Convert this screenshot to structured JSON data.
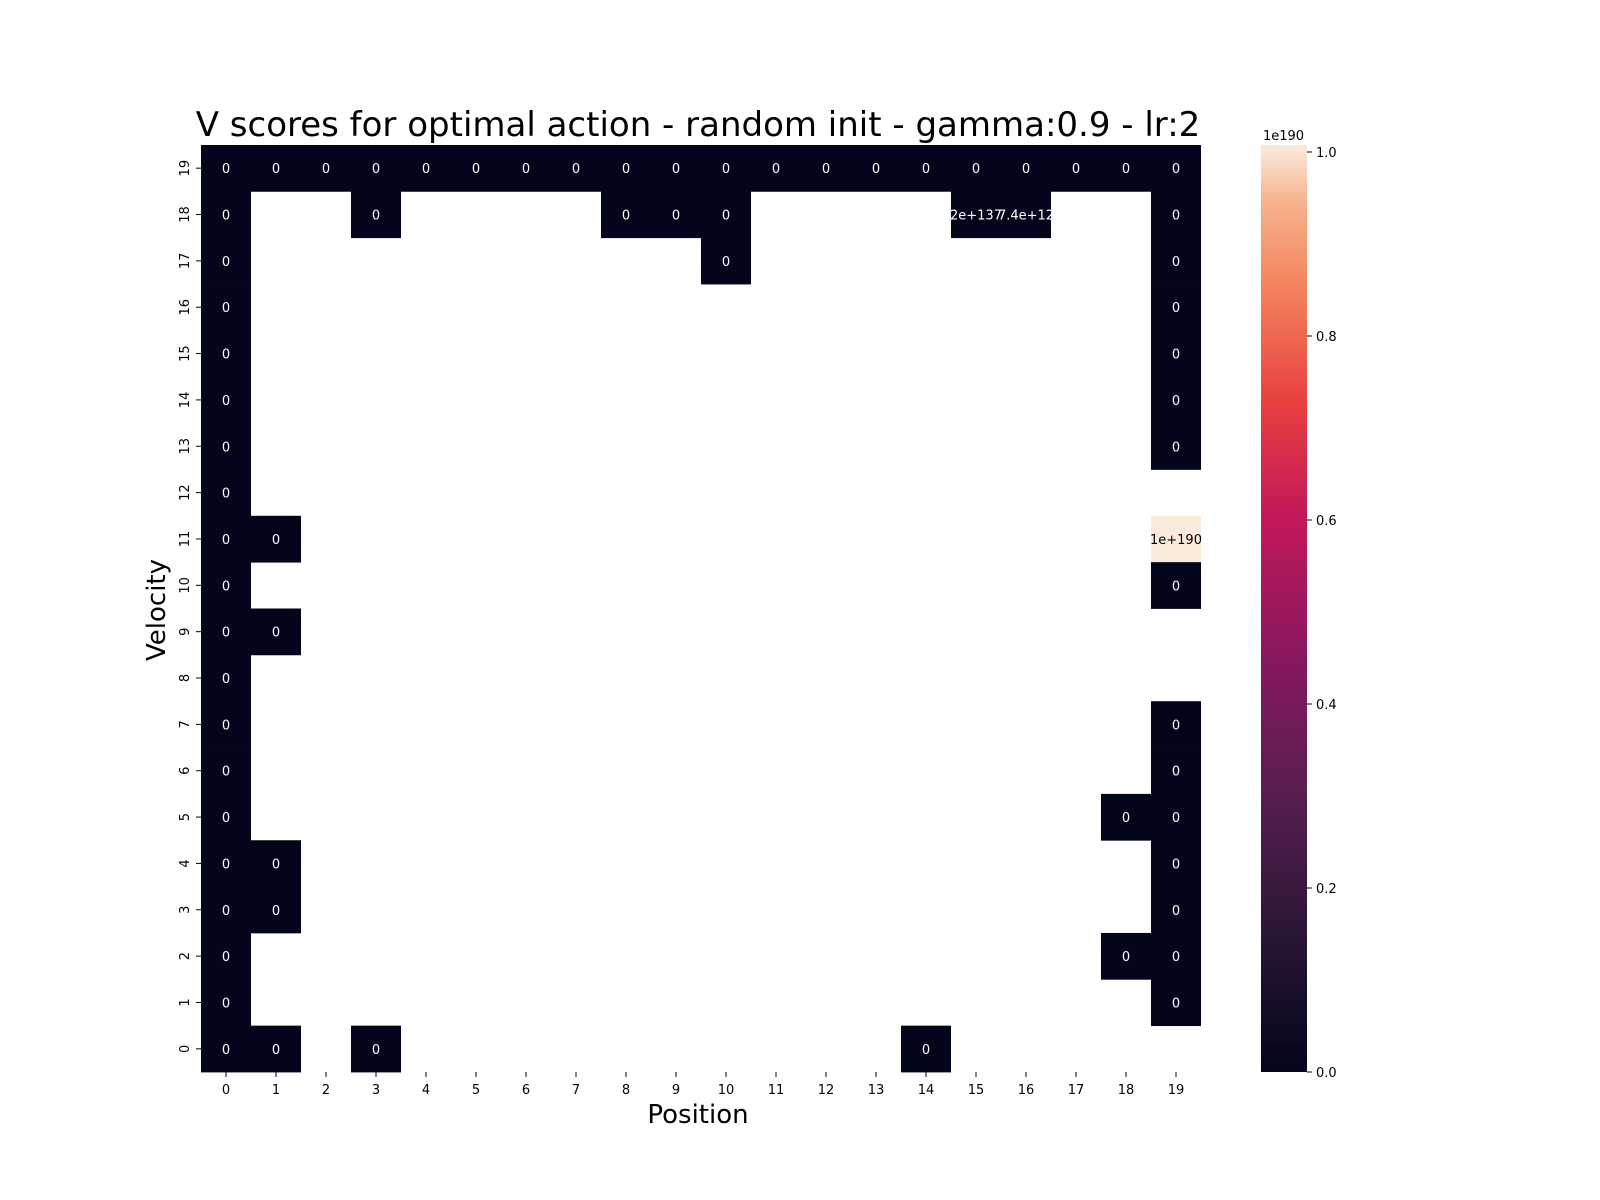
{
  "chart_data": {
    "type": "heatmap",
    "title": "V scores for optimal action - random init - gamma:0.9 - lr:2",
    "xlabel": "Position",
    "ylabel": "Velocity",
    "x_ticks": [
      "0",
      "1",
      "2",
      "3",
      "4",
      "5",
      "6",
      "7",
      "8",
      "9",
      "10",
      "11",
      "12",
      "13",
      "14",
      "15",
      "16",
      "17",
      "18",
      "19"
    ],
    "y_ticks": [
      "0",
      "1",
      "2",
      "3",
      "4",
      "5",
      "6",
      "7",
      "8",
      "9",
      "10",
      "11",
      "12",
      "13",
      "14",
      "15",
      "16",
      "17",
      "18",
      "19"
    ],
    "colorbar": {
      "scale_label": "1e190",
      "ticks": [
        "0.0",
        "0.2",
        "0.4",
        "0.6",
        "0.8",
        "1.0"
      ],
      "range": [
        0,
        1.0
      ],
      "colormap": "rocket"
    },
    "cells": [
      {
        "x": 0,
        "y": 19,
        "value": 0,
        "label": "0"
      },
      {
        "x": 1,
        "y": 19,
        "value": 0,
        "label": "0"
      },
      {
        "x": 2,
        "y": 19,
        "value": 0,
        "label": "0"
      },
      {
        "x": 3,
        "y": 19,
        "value": 0,
        "label": "0"
      },
      {
        "x": 4,
        "y": 19,
        "value": 0,
        "label": "0"
      },
      {
        "x": 5,
        "y": 19,
        "value": 0,
        "label": "0"
      },
      {
        "x": 6,
        "y": 19,
        "value": 0,
        "label": "0"
      },
      {
        "x": 7,
        "y": 19,
        "value": 0,
        "label": "0"
      },
      {
        "x": 8,
        "y": 19,
        "value": 0,
        "label": "0"
      },
      {
        "x": 9,
        "y": 19,
        "value": 0,
        "label": "0"
      },
      {
        "x": 10,
        "y": 19,
        "value": 0,
        "label": "0"
      },
      {
        "x": 11,
        "y": 19,
        "value": 0,
        "label": "0"
      },
      {
        "x": 12,
        "y": 19,
        "value": 0,
        "label": "0"
      },
      {
        "x": 13,
        "y": 19,
        "value": 0,
        "label": "0"
      },
      {
        "x": 14,
        "y": 19,
        "value": 0,
        "label": "0"
      },
      {
        "x": 15,
        "y": 19,
        "value": 0,
        "label": "0"
      },
      {
        "x": 16,
        "y": 19,
        "value": 0,
        "label": "0"
      },
      {
        "x": 17,
        "y": 19,
        "value": 0,
        "label": "0"
      },
      {
        "x": 18,
        "y": 19,
        "value": 0,
        "label": "0"
      },
      {
        "x": 19,
        "y": 19,
        "value": 0,
        "label": "0"
      },
      {
        "x": 0,
        "y": 18,
        "value": 0,
        "label": "0"
      },
      {
        "x": 3,
        "y": 18,
        "value": 0,
        "label": "0"
      },
      {
        "x": 8,
        "y": 18,
        "value": 0,
        "label": "0"
      },
      {
        "x": 9,
        "y": 18,
        "value": 0,
        "label": "0"
      },
      {
        "x": 10,
        "y": 18,
        "value": 0,
        "label": "0"
      },
      {
        "x": 15,
        "y": 18,
        "value": 0,
        "label": "2e+137"
      },
      {
        "x": 16,
        "y": 18,
        "value": 0,
        "label": "7.4e+12"
      },
      {
        "x": 19,
        "y": 18,
        "value": 0,
        "label": "0"
      },
      {
        "x": 0,
        "y": 17,
        "value": 0,
        "label": "0"
      },
      {
        "x": 10,
        "y": 17,
        "value": 0,
        "label": "0"
      },
      {
        "x": 19,
        "y": 17,
        "value": 0,
        "label": "0"
      },
      {
        "x": 0,
        "y": 16,
        "value": 0,
        "label": "0"
      },
      {
        "x": 19,
        "y": 16,
        "value": 0,
        "label": "0"
      },
      {
        "x": 0,
        "y": 15,
        "value": 0,
        "label": "0"
      },
      {
        "x": 19,
        "y": 15,
        "value": 0,
        "label": "0"
      },
      {
        "x": 0,
        "y": 14,
        "value": 0,
        "label": "0"
      },
      {
        "x": 19,
        "y": 14,
        "value": 0,
        "label": "0"
      },
      {
        "x": 0,
        "y": 13,
        "value": 0,
        "label": "0"
      },
      {
        "x": 19,
        "y": 13,
        "value": 0,
        "label": "0"
      },
      {
        "x": 0,
        "y": 12,
        "value": 0,
        "label": "0"
      },
      {
        "x": 0,
        "y": 11,
        "value": 0,
        "label": "0"
      },
      {
        "x": 1,
        "y": 11,
        "value": 0,
        "label": "0"
      },
      {
        "x": 19,
        "y": 11,
        "value": 1.0,
        "label": "1e+190"
      },
      {
        "x": 0,
        "y": 10,
        "value": 0,
        "label": "0"
      },
      {
        "x": 19,
        "y": 10,
        "value": 0,
        "label": "0"
      },
      {
        "x": 0,
        "y": 9,
        "value": 0,
        "label": "0"
      },
      {
        "x": 1,
        "y": 9,
        "value": 0,
        "label": "0"
      },
      {
        "x": 0,
        "y": 8,
        "value": 0,
        "label": "0"
      },
      {
        "x": 0,
        "y": 7,
        "value": 0,
        "label": "0"
      },
      {
        "x": 19,
        "y": 7,
        "value": 0,
        "label": "0"
      },
      {
        "x": 0,
        "y": 6,
        "value": 0,
        "label": "0"
      },
      {
        "x": 19,
        "y": 6,
        "value": 0,
        "label": "0"
      },
      {
        "x": 0,
        "y": 5,
        "value": 0,
        "label": "0"
      },
      {
        "x": 18,
        "y": 5,
        "value": 0,
        "label": "0"
      },
      {
        "x": 19,
        "y": 5,
        "value": 0,
        "label": "0"
      },
      {
        "x": 0,
        "y": 4,
        "value": 0,
        "label": "0"
      },
      {
        "x": 1,
        "y": 4,
        "value": 0,
        "label": "0"
      },
      {
        "x": 19,
        "y": 4,
        "value": 0,
        "label": "0"
      },
      {
        "x": 0,
        "y": 3,
        "value": 0,
        "label": "0"
      },
      {
        "x": 1,
        "y": 3,
        "value": 0,
        "label": "0"
      },
      {
        "x": 19,
        "y": 3,
        "value": 0,
        "label": "0"
      },
      {
        "x": 0,
        "y": 2,
        "value": 0,
        "label": "0"
      },
      {
        "x": 18,
        "y": 2,
        "value": 0,
        "label": "0"
      },
      {
        "x": 19,
        "y": 2,
        "value": 0,
        "label": "0"
      },
      {
        "x": 0,
        "y": 1,
        "value": 0,
        "label": "0"
      },
      {
        "x": 19,
        "y": 1,
        "value": 0,
        "label": "0"
      },
      {
        "x": 0,
        "y": 0,
        "value": 0,
        "label": "0"
      },
      {
        "x": 1,
        "y": 0,
        "value": 0,
        "label": "0"
      },
      {
        "x": 3,
        "y": 0,
        "value": 0,
        "label": "0"
      },
      {
        "x": 14,
        "y": 0,
        "value": 0,
        "label": "0"
      }
    ]
  }
}
